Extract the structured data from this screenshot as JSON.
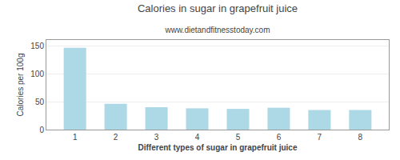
{
  "chart_data": {
    "type": "bar",
    "title": "Calories in sugar in grapefruit juice",
    "subtitle": "www.dietandfitnesstoday.com",
    "xlabel": "Different types of sugar in grapefruit juice",
    "ylabel": "Calories per 100g",
    "x": [
      1,
      2,
      3,
      4,
      5,
      6,
      7,
      8
    ],
    "values": [
      146,
      46,
      40,
      38,
      37,
      39,
      35,
      35
    ],
    "color": "#add8e6",
    "xlim": [
      0.3,
      8.7
    ],
    "xticks": [
      1,
      2,
      3,
      4,
      5,
      6,
      7,
      8
    ],
    "ylim": [
      0,
      160
    ],
    "yticks": [
      0,
      50,
      100,
      150
    ],
    "grid": true
  }
}
